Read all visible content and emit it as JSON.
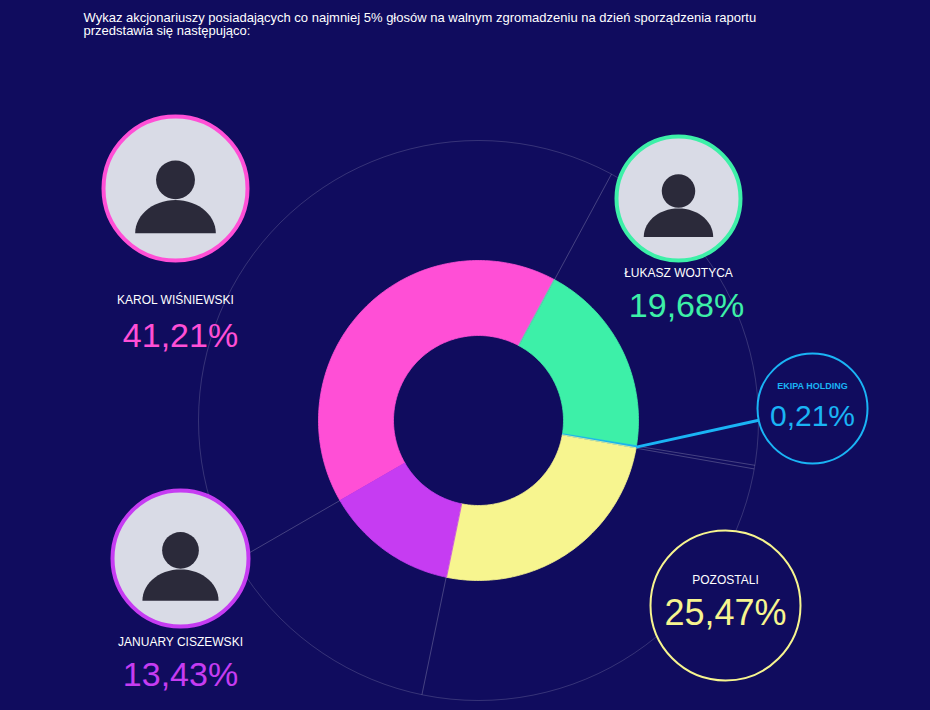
{
  "chart_data": {
    "type": "donut",
    "title": "Wykaz akcjonariuszy posiadających co najmniej 5% głosów na walnym zgromadzeniu na dzień sporządzenia raportu przedstawia się następująco:",
    "categories": [
      "KAROL WIŚNIEWSKI",
      "ŁUKASZ WOJTYCA",
      "EKIPA HOLDING",
      "POZOSTALI",
      "JANUARY CISZEWSKI"
    ],
    "values": [
      41.21,
      19.68,
      0.21,
      25.47,
      13.43
    ],
    "value_labels": [
      "41,21%",
      "19,68%",
      "0,21%",
      "25,47%",
      "13,43%"
    ],
    "colors": [
      "#ff4fd6",
      "#3df0a8",
      "#1ab4f5",
      "#f7f58f",
      "#c63cf2"
    ],
    "data_labels": true,
    "tick_labels": false
  }
}
